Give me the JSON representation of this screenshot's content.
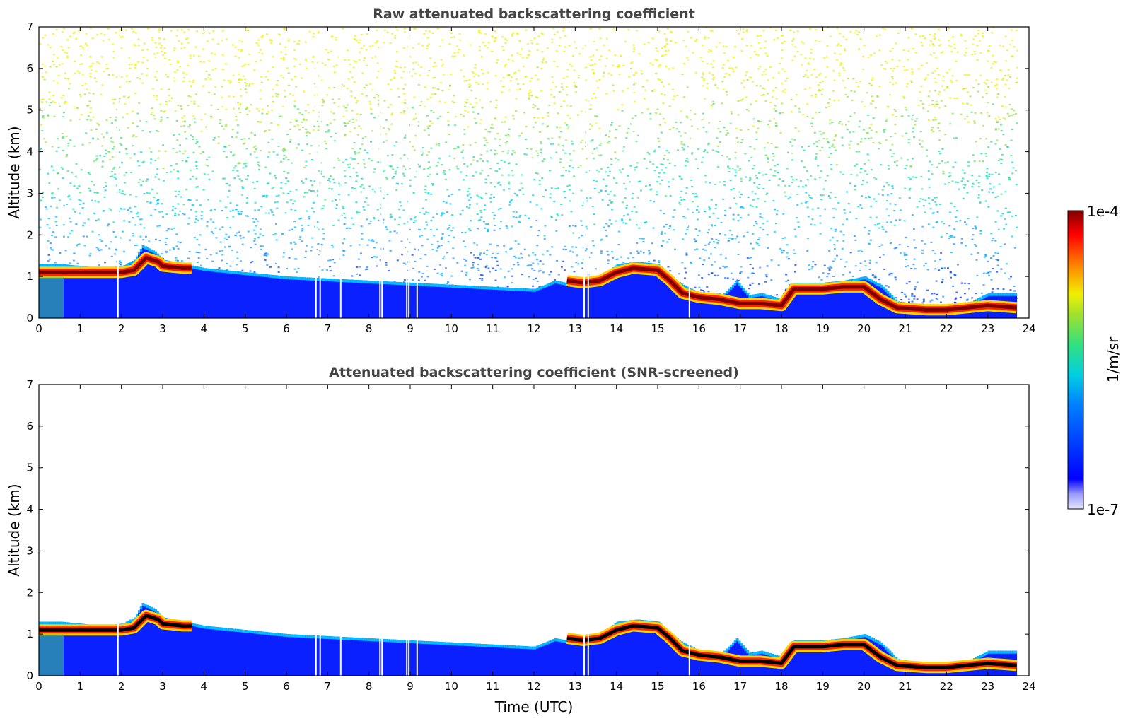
{
  "chart_data": [
    {
      "type": "heatmap",
      "title": "Raw attenuated backscattering coefficient",
      "xlabel": "",
      "ylabel": "Altitude (km)",
      "xlim": [
        0,
        24
      ],
      "ylim": [
        0,
        7
      ],
      "x_ticks": [
        0,
        1,
        2,
        3,
        4,
        5,
        6,
        7,
        8,
        9,
        10,
        11,
        12,
        13,
        14,
        15,
        16,
        17,
        18,
        19,
        20,
        21,
        22,
        23,
        24
      ],
      "y_ticks": [
        0,
        1,
        2,
        3,
        4,
        5,
        6,
        7
      ],
      "data_end_time": 23.7,
      "gaps_utc": [
        1.9,
        6.7,
        6.8,
        7.3,
        8.25,
        8.3,
        8.9,
        8.95,
        9.15,
        13.2,
        13.3,
        15.75
      ],
      "aerosol_layer_top_km": [
        [
          0.0,
          1.3
        ],
        [
          0.5,
          1.3
        ],
        [
          1.0,
          1.25
        ],
        [
          1.5,
          1.2
        ],
        [
          2.0,
          1.25
        ],
        [
          2.3,
          1.4
        ],
        [
          2.5,
          1.75
        ],
        [
          2.8,
          1.6
        ],
        [
          3.0,
          1.4
        ],
        [
          3.5,
          1.3
        ],
        [
          4.0,
          1.2
        ],
        [
          4.5,
          1.15
        ],
        [
          5.0,
          1.1
        ],
        [
          6.0,
          1.0
        ],
        [
          7.0,
          0.95
        ],
        [
          8.0,
          0.9
        ],
        [
          9.0,
          0.85
        ],
        [
          10.0,
          0.8
        ],
        [
          11.0,
          0.75
        ],
        [
          12.0,
          0.7
        ],
        [
          12.5,
          0.9
        ],
        [
          13.0,
          0.8
        ],
        [
          13.5,
          0.9
        ],
        [
          14.0,
          1.3
        ],
        [
          14.5,
          1.35
        ],
        [
          15.0,
          1.3
        ],
        [
          15.3,
          1.0
        ],
        [
          15.6,
          0.8
        ],
        [
          16.0,
          0.6
        ],
        [
          16.5,
          0.5
        ],
        [
          16.9,
          0.9
        ],
        [
          17.2,
          0.55
        ],
        [
          17.5,
          0.6
        ],
        [
          18.0,
          0.45
        ],
        [
          18.3,
          0.85
        ],
        [
          18.7,
          0.85
        ],
        [
          19.0,
          0.85
        ],
        [
          19.5,
          0.9
        ],
        [
          20.0,
          1.0
        ],
        [
          20.4,
          0.8
        ],
        [
          20.8,
          0.4
        ],
        [
          21.5,
          0.3
        ],
        [
          22.0,
          0.3
        ],
        [
          22.5,
          0.35
        ],
        [
          23.0,
          0.6
        ],
        [
          23.7,
          0.6
        ]
      ],
      "backscatter_peak_km": [
        [
          0.0,
          1.1
        ],
        [
          0.5,
          1.1
        ],
        [
          1.0,
          1.1
        ],
        [
          1.5,
          1.1
        ],
        [
          2.0,
          1.1
        ],
        [
          2.3,
          1.15
        ],
        [
          2.6,
          1.45
        ],
        [
          2.9,
          1.35
        ],
        [
          3.0,
          1.25
        ],
        [
          3.5,
          1.2
        ],
        [
          3.7,
          1.2
        ],
        [
          12.8,
          0.9
        ],
        [
          13.2,
          0.85
        ],
        [
          13.6,
          0.9
        ],
        [
          14.0,
          1.1
        ],
        [
          14.4,
          1.2
        ],
        [
          15.0,
          1.15
        ],
        [
          15.3,
          0.9
        ],
        [
          15.6,
          0.6
        ],
        [
          16.0,
          0.5
        ],
        [
          16.5,
          0.45
        ],
        [
          17.0,
          0.35
        ],
        [
          17.5,
          0.35
        ],
        [
          18.0,
          0.3
        ],
        [
          18.3,
          0.7
        ],
        [
          18.7,
          0.7
        ],
        [
          19.0,
          0.7
        ],
        [
          19.5,
          0.75
        ],
        [
          20.0,
          0.75
        ],
        [
          20.4,
          0.45
        ],
        [
          20.8,
          0.25
        ],
        [
          21.5,
          0.2
        ],
        [
          22.0,
          0.2
        ],
        [
          22.5,
          0.25
        ],
        [
          23.0,
          0.3
        ],
        [
          23.7,
          0.25
        ]
      ]
    },
    {
      "type": "heatmap",
      "title": "Attenuated backscattering coefficient (SNR-screened)",
      "xlabel": "Time (UTC)",
      "ylabel": "Altitude (km)",
      "xlim": [
        0,
        24
      ],
      "ylim": [
        0,
        7
      ],
      "x_ticks": [
        0,
        1,
        2,
        3,
        4,
        5,
        6,
        7,
        8,
        9,
        10,
        11,
        12,
        13,
        14,
        15,
        16,
        17,
        18,
        19,
        20,
        21,
        22,
        23,
        24
      ],
      "y_ticks": [
        0,
        1,
        2,
        3,
        4,
        5,
        6,
        7
      ],
      "data_end_time": 23.7
    }
  ],
  "colorbar": {
    "label": "1/m/sr",
    "max_label": "1e-4",
    "min_label": "1e-7",
    "scale": "log",
    "colors": [
      "#e6e6fa",
      "#0000ff",
      "#00bfff",
      "#00e0b0",
      "#80e050",
      "#f0f000",
      "#ff8000",
      "#ff0000",
      "#800000"
    ]
  }
}
